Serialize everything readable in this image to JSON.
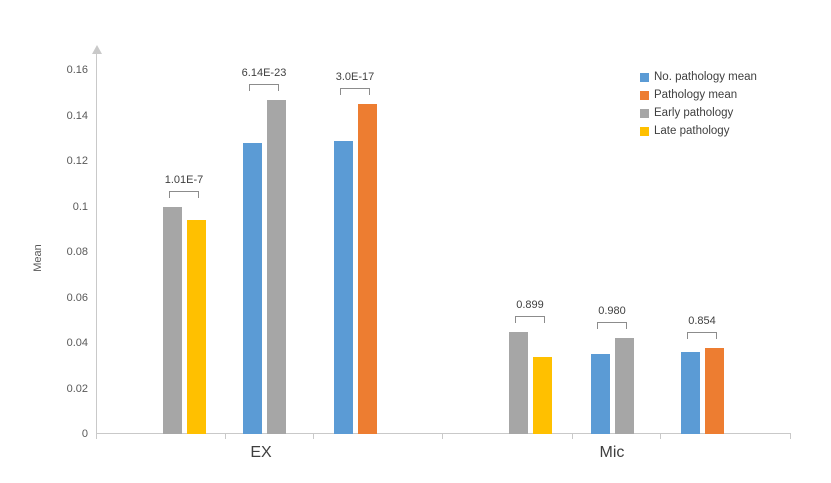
{
  "chart_data": {
    "type": "bar",
    "title": "",
    "xlabel": "",
    "ylabel": "Mean",
    "ylim": [
      0,
      0.16
    ],
    "grid": false,
    "legend_position": "right",
    "groups": [
      "EX",
      "Mic"
    ],
    "yticks": [
      {
        "value": 0,
        "label": "0"
      },
      {
        "value": 0.02,
        "label": "0.02"
      },
      {
        "value": 0.04,
        "label": "0.04"
      },
      {
        "value": 0.06,
        "label": "0.06"
      },
      {
        "value": 0.08,
        "label": "0.08"
      },
      {
        "value": 0.1,
        "label": "0.1"
      },
      {
        "value": 0.12,
        "label": "0.12"
      },
      {
        "value": 0.14,
        "label": "0.14"
      },
      {
        "value": 0.16,
        "label": "0.16"
      }
    ],
    "series_legend": [
      {
        "name": "No. pathology mean",
        "color": "#5B9BD5"
      },
      {
        "name": "Pathology mean",
        "color": "#ED7D31"
      },
      {
        "name": "Early pathology",
        "color": "#A6A6A6"
      },
      {
        "name": "Late pathology",
        "color": "#FFC000"
      }
    ],
    "pairs": [
      {
        "group": "EX",
        "p_label": "1.01E-7",
        "bars": [
          {
            "series": "Early pathology",
            "value": 0.1
          },
          {
            "series": "Late pathology",
            "value": 0.094
          }
        ]
      },
      {
        "group": "EX",
        "p_label": "6.14E-23",
        "bars": [
          {
            "series": "No. pathology mean",
            "value": 0.128
          },
          {
            "series": "Early pathology",
            "value": 0.147
          }
        ]
      },
      {
        "group": "EX",
        "p_label": "3.0E-17",
        "bars": [
          {
            "series": "No. pathology mean",
            "value": 0.129
          },
          {
            "series": "Pathology mean",
            "value": 0.145
          }
        ]
      },
      {
        "group": "Mic",
        "p_label": "0.899",
        "bars": [
          {
            "series": "Early pathology",
            "value": 0.045
          },
          {
            "series": "Late pathology",
            "value": 0.034
          }
        ]
      },
      {
        "group": "Mic",
        "p_label": "0.980",
        "bars": [
          {
            "series": "No. pathology mean",
            "value": 0.035
          },
          {
            "series": "Early pathology",
            "value": 0.042
          }
        ]
      },
      {
        "group": "Mic",
        "p_label": "0.854",
        "bars": [
          {
            "series": "No. pathology mean",
            "value": 0.036
          },
          {
            "series": "Pathology mean",
            "value": 0.038
          }
        ]
      }
    ]
  }
}
